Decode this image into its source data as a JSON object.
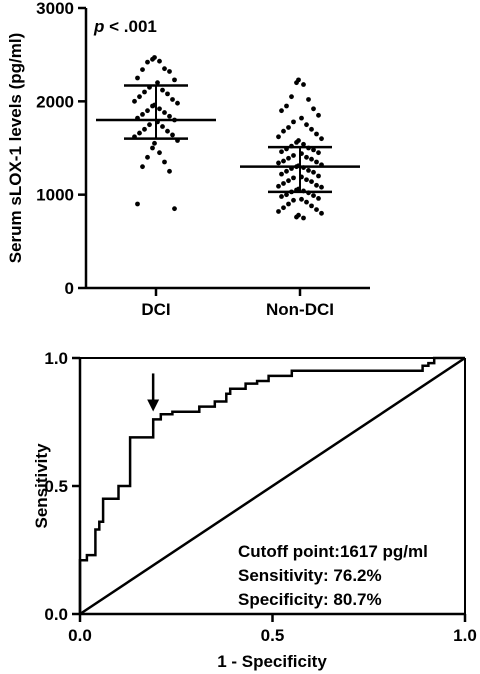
{
  "chart_data": [
    {
      "type": "scatter",
      "subtype": "dot-plot",
      "annotation": "p < .001",
      "annotation_prefix": "p",
      "annotation_rest": " < .001",
      "ylabel": "Serum sLOX-1 levels (pg/ml)",
      "xlabel": "",
      "ylim": [
        0,
        3000
      ],
      "yticks": [
        "0",
        "1000",
        "2000",
        "3000"
      ],
      "categories": [
        "DCI",
        "Non-DCI"
      ],
      "groups": [
        {
          "name": "DCI",
          "mean": 1800,
          "sd_low": 1600,
          "sd_high": 2170,
          "values": [
            2470,
            2450,
            2430,
            2420,
            2350,
            2340,
            2320,
            2250,
            2230,
            2200,
            2150,
            2120,
            2100,
            2080,
            2050,
            2020,
            2000,
            1980,
            1960,
            1950,
            1920,
            1900,
            1880,
            1860,
            1840,
            1820,
            1800,
            1780,
            1750,
            1730,
            1700,
            1680,
            1660,
            1640,
            1620,
            1580,
            1550,
            1500,
            1450,
            1400,
            1350,
            1300,
            1250,
            900,
            850
          ]
        },
        {
          "name": "Non-DCI",
          "mean": 1300,
          "sd_low": 1030,
          "sd_high": 1510,
          "values": [
            2230,
            2200,
            2180,
            2050,
            2020,
            1950,
            1920,
            1900,
            1850,
            1820,
            1780,
            1750,
            1720,
            1700,
            1680,
            1650,
            1620,
            1600,
            1580,
            1560,
            1540,
            1520,
            1500,
            1490,
            1480,
            1460,
            1450,
            1440,
            1420,
            1400,
            1390,
            1380,
            1360,
            1350,
            1340,
            1320,
            1310,
            1300,
            1290,
            1280,
            1260,
            1250,
            1240,
            1220,
            1200,
            1190,
            1180,
            1160,
            1150,
            1140,
            1120,
            1100,
            1090,
            1080,
            1060,
            1050,
            1040,
            1030,
            1020,
            1000,
            990,
            980,
            960,
            950,
            940,
            920,
            900,
            880,
            860,
            840,
            820,
            800,
            780,
            760,
            750
          ]
        }
      ]
    },
    {
      "type": "line",
      "subtype": "roc",
      "xlabel": "1 - Specificity",
      "ylabel": "Sensitivity",
      "xlim": [
        0,
        1
      ],
      "ylim": [
        0,
        1
      ],
      "xticks": [
        "0.0",
        "0.5",
        "1.0"
      ],
      "yticks": [
        "0.0",
        "0.5",
        "1.0"
      ],
      "series": [
        {
          "values": [
            [
              0,
              0
            ],
            [
              0,
              0.21
            ],
            [
              0.018,
              0.21
            ],
            [
              0.018,
              0.23
            ],
            [
              0.04,
              0.23
            ],
            [
              0.04,
              0.33
            ],
            [
              0.05,
              0.33
            ],
            [
              0.05,
              0.36
            ],
            [
              0.06,
              0.36
            ],
            [
              0.06,
              0.45
            ],
            [
              0.1,
              0.45
            ],
            [
              0.1,
              0.5
            ],
            [
              0.13,
              0.5
            ],
            [
              0.13,
              0.69
            ],
            [
              0.19,
              0.69
            ],
            [
              0.19,
              0.76
            ],
            [
              0.21,
              0.76
            ],
            [
              0.21,
              0.78
            ],
            [
              0.24,
              0.78
            ],
            [
              0.24,
              0.79
            ],
            [
              0.31,
              0.79
            ],
            [
              0.31,
              0.81
            ],
            [
              0.35,
              0.81
            ],
            [
              0.35,
              0.83
            ],
            [
              0.38,
              0.83
            ],
            [
              0.38,
              0.86
            ],
            [
              0.39,
              0.86
            ],
            [
              0.39,
              0.88
            ],
            [
              0.43,
              0.88
            ],
            [
              0.43,
              0.9
            ],
            [
              0.46,
              0.9
            ],
            [
              0.46,
              0.91
            ],
            [
              0.49,
              0.91
            ],
            [
              0.49,
              0.93
            ],
            [
              0.55,
              0.93
            ],
            [
              0.55,
              0.95
            ],
            [
              0.89,
              0.95
            ],
            [
              0.89,
              0.97
            ],
            [
              0.905,
              0.97
            ],
            [
              0.905,
              0.98
            ],
            [
              0.92,
              0.98
            ],
            [
              0.92,
              1
            ],
            [
              1,
              1
            ]
          ]
        },
        {
          "values": [
            [
              0,
              0
            ],
            [
              1,
              1
            ]
          ]
        }
      ],
      "arrow_at": [
        0.19,
        0.76
      ],
      "annotations": [
        "Cutoff point:1617 pg/ml",
        "Sensitivity: 76.2%",
        "Specificity: 80.7%"
      ]
    }
  ]
}
